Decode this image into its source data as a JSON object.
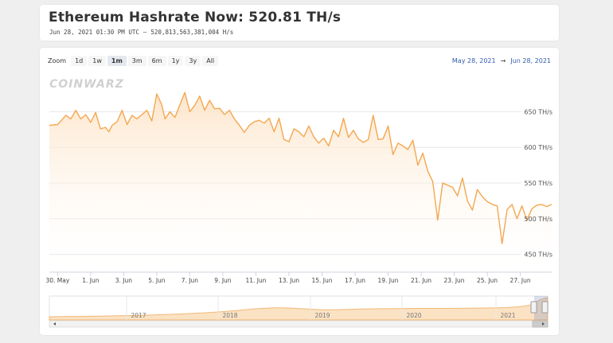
{
  "header": {
    "title": "Ethereum Hashrate Now: 520.81 TH/s",
    "timestamp": "Jun 28, 2021 01:30 PM UTC",
    "separator": "–",
    "hashes": "520,813,563,381,004 H/s"
  },
  "toolbar": {
    "zoom_label": "Zoom",
    "zoom_buttons": [
      "1d",
      "1w",
      "1m",
      "3m",
      "6m",
      "1y",
      "3y",
      "All"
    ],
    "active_zoom": "1m",
    "range_from": "May 28, 2021",
    "range_arrow": "→",
    "range_to": "Jun 28, 2021"
  },
  "watermark": "COINWARZ",
  "colors": {
    "line": "#f4a74f",
    "area_top": "#fde9d4",
    "grid": "#e6e6e6",
    "navigator_fill": "#fbe2c3"
  },
  "chart_data": {
    "type": "area",
    "title": "Ethereum Hashrate Now: 520.81 TH/s",
    "xlabel": "",
    "ylabel": "",
    "y_unit": "TH/s",
    "ylim": [
      425,
      675
    ],
    "yticks": [
      450,
      500,
      550,
      600,
      650
    ],
    "ytick_labels": [
      "450 TH/s",
      "500 TH/s",
      "550 TH/s",
      "600 TH/s",
      "650 TH/s"
    ],
    "xlim_days": [
      0,
      30.4
    ],
    "xticks": [
      {
        "day": 0.5,
        "label": "30. May"
      },
      {
        "day": 2.5,
        "label": "1. Jun"
      },
      {
        "day": 4.5,
        "label": "3. Jun"
      },
      {
        "day": 6.5,
        "label": "5. Jun"
      },
      {
        "day": 8.5,
        "label": "7. Jun"
      },
      {
        "day": 10.5,
        "label": "9. Jun"
      },
      {
        "day": 12.5,
        "label": "11. Jun"
      },
      {
        "day": 14.5,
        "label": "13. Jun"
      },
      {
        "day": 16.5,
        "label": "15. Jun"
      },
      {
        "day": 18.5,
        "label": "17. Jun"
      },
      {
        "day": 20.5,
        "label": "19. Jun"
      },
      {
        "day": 22.5,
        "label": "21. Jun"
      },
      {
        "day": 24.5,
        "label": "23. Jun"
      },
      {
        "day": 26.5,
        "label": "25. Jun"
      },
      {
        "day": 28.5,
        "label": "27. Jun"
      }
    ],
    "grid": true,
    "legend": "none",
    "series": [
      {
        "x": [
          0,
          0.5,
          1.0,
          1.3,
          1.6,
          1.9,
          2.2,
          2.5,
          2.8,
          3.1,
          3.4,
          3.6,
          3.8,
          4.1,
          4.4,
          4.7,
          5.0,
          5.3,
          5.6,
          5.9,
          6.2,
          6.5,
          6.8,
          7.0,
          7.3,
          7.6,
          7.9,
          8.2,
          8.5,
          8.8,
          9.1,
          9.4,
          9.7,
          10.0,
          10.3,
          10.6,
          10.9,
          11.2,
          11.5,
          11.8,
          12.1,
          12.4,
          12.7,
          13.0,
          13.3,
          13.6,
          13.9,
          14.2,
          14.5,
          14.8,
          15.1,
          15.4,
          15.7,
          16.0,
          16.3,
          16.6,
          16.9,
          17.2,
          17.5,
          17.8,
          18.1,
          18.4,
          18.7,
          19.0,
          19.3,
          19.6,
          19.9,
          20.2,
          20.5,
          20.8,
          21.1,
          21.4,
          21.7,
          22.0,
          22.3,
          22.6,
          22.9,
          23.2,
          23.5,
          23.8,
          24.1,
          24.4,
          24.7,
          25.0,
          25.3,
          25.6,
          25.9,
          26.2,
          26.5,
          26.8,
          27.1,
          27.4,
          27.7,
          28.0,
          28.3,
          28.6,
          28.9,
          29.2,
          29.5,
          29.8,
          30.1,
          30.4
        ],
        "values": [
          631,
          632,
          645,
          640,
          652,
          640,
          646,
          635,
          649,
          626,
          628,
          622,
          631,
          636,
          652,
          632,
          645,
          640,
          646,
          652,
          637,
          675,
          660,
          640,
          650,
          642,
          660,
          677,
          650,
          659,
          672,
          652,
          666,
          654,
          655,
          646,
          652,
          640,
          631,
          621,
          631,
          636,
          638,
          634,
          641,
          622,
          641,
          611,
          608,
          626,
          622,
          615,
          630,
          615,
          606,
          613,
          602,
          624,
          615,
          641,
          614,
          624,
          612,
          607,
          611,
          645,
          611,
          612,
          630,
          590,
          606,
          602,
          597,
          610,
          575,
          592,
          567,
          552,
          498,
          550,
          547,
          544,
          532,
          557,
          525,
          512,
          541,
          531,
          524,
          520,
          518,
          465,
          513,
          520,
          500,
          518,
          498,
          514,
          519,
          520,
          517,
          520
        ]
      }
    ],
    "navigator": {
      "labels": [
        "2017",
        "2018",
        "2019",
        "2020",
        "2021"
      ]
    }
  }
}
